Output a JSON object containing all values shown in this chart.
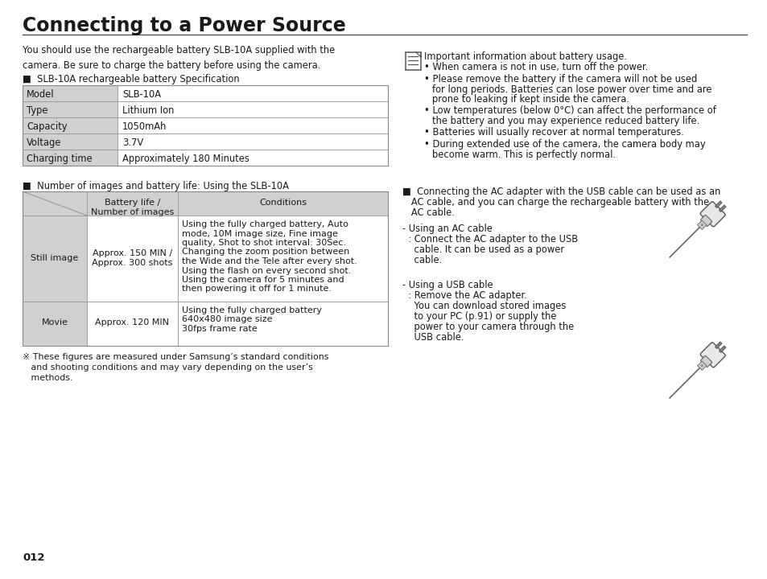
{
  "title": "Connecting to a Power Source",
  "bg_color": "#ffffff",
  "text_color": "#1a1a1a",
  "gray_cell": "#d0d0d0",
  "intro_text": "You should use the rechargeable battery SLB-10A supplied with the\ncamera. Be sure to charge the battery before using the camera.",
  "spec_heading": "■  SLB-10A rechargeable battery Specification",
  "spec_rows": [
    [
      "Model",
      "SLB-10A"
    ],
    [
      "Type",
      "Lithium Ion"
    ],
    [
      "Capacity",
      "1050mAh"
    ],
    [
      "Voltage",
      "3.7V"
    ],
    [
      "Charging time",
      "Approximately 180 Minutes"
    ]
  ],
  "battery_heading": "■  Number of images and battery life: Using the SLB-10A",
  "battery_headers": [
    "",
    "Battery life /\nNumber of images",
    "Conditions"
  ],
  "battery_rows": [
    [
      "Still image",
      "Approx. 150 MIN /\nApprox. 300 shots",
      "Using the fully charged battery, Auto\nmode, 10M image size, Fine image\nquality, Shot to shot interval: 30Sec.\nChanging the zoom position between\nthe Wide and the Tele after every shot.\nUsing the flash on every second shot.\nUsing the camera for 5 minutes and\nthen powering it off for 1 minute."
    ],
    [
      "Movie",
      "Approx. 120 MIN",
      "Using the fully charged battery\n640x480 image size\n30fps frame rate"
    ]
  ],
  "footnote": "※ These figures are measured under Samsung’s standard conditions\n   and shooting conditions and may vary depending on the user’s\n   methods.",
  "page_num": "012",
  "right_note_title": "Important information about battery usage.",
  "right_bullets": [
    "When camera is not in use, turn off the power.",
    "Please remove the battery if the camera will not be used\nfor long periods. Batteries can lose power over time and are\nprone to leaking if kept inside the camera.",
    "Low temperatures (below 0°C) can affect the performance of\nthe battery and you may experience reduced battery life.",
    "Batteries will usually recover at normal temperatures.",
    "During extended use of the camera, the camera body may\nbecome warm. This is perfectly normal."
  ],
  "right_ac_heading": "■  Connecting the AC adapter with the USB cable can be used as an\n   AC cable, and you can charge the rechargeable battery with the\n   AC cable.",
  "ac_cable_label": "- Using an AC cable",
  "ac_cable_body": "  : Connect the AC adapter to the USB\n    cable. It can be used as a power\n    cable.",
  "usb_cable_label": "- Using a USB cable",
  "usb_cable_body": "  : Remove the AC adapter.\n    You can download stored images\n    to your PC (p.91) or supply the\n    power to your camera through the\n    USB cable."
}
